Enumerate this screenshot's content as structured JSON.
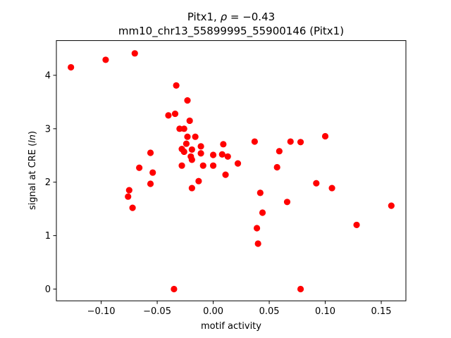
{
  "chart_data": {
    "type": "scatter",
    "title_main": "Pitx1, ",
    "title_rho_symbol": "ρ",
    "title_rho_value": " = −0.43",
    "subtitle": "mm10_chr13_55899995_55900146 (Pitx1)",
    "xlabel": "motif activity",
    "ylabel_prefix": "signal at CRE (",
    "ylabel_italic": "ln",
    "ylabel_suffix": ")",
    "xlim": [
      -0.14,
      0.172
    ],
    "ylim": [
      -0.22,
      4.65
    ],
    "xticks": [
      -0.1,
      -0.05,
      0.0,
      0.05,
      0.1,
      0.15
    ],
    "xtick_labels": [
      "−0.10",
      "−0.05",
      "0.00",
      "0.05",
      "0.10",
      "0.15"
    ],
    "yticks": [
      0,
      1,
      2,
      3,
      4
    ],
    "ytick_labels": [
      "0",
      "1",
      "2",
      "3",
      "4"
    ],
    "grid": false,
    "marker_color": "#ff0000",
    "points": [
      [
        -0.127,
        4.15
      ],
      [
        -0.096,
        4.29
      ],
      [
        -0.07,
        4.41
      ],
      [
        -0.033,
        3.81
      ],
      [
        -0.04,
        3.25
      ],
      [
        -0.034,
        3.28
      ],
      [
        -0.023,
        3.53
      ],
      [
        -0.021,
        3.15
      ],
      [
        -0.03,
        3.0
      ],
      [
        -0.026,
        3.0
      ],
      [
        -0.023,
        2.85
      ],
      [
        -0.016,
        2.85
      ],
      [
        -0.024,
        2.72
      ],
      [
        -0.028,
        2.62
      ],
      [
        -0.019,
        2.61
      ],
      [
        -0.026,
        2.57
      ],
      [
        -0.02,
        2.48
      ],
      [
        -0.019,
        2.42
      ],
      [
        -0.011,
        2.67
      ],
      [
        -0.011,
        2.54
      ],
      [
        -0.028,
        2.31
      ],
      [
        -0.009,
        2.31
      ],
      [
        0.0,
        2.51
      ],
      [
        0.0,
        2.31
      ],
      [
        -0.013,
        2.02
      ],
      [
        -0.019,
        1.89
      ],
      [
        -0.056,
        2.55
      ],
      [
        -0.066,
        2.27
      ],
      [
        -0.054,
        2.18
      ],
      [
        -0.056,
        1.97
      ],
      [
        -0.075,
        1.85
      ],
      [
        -0.076,
        1.73
      ],
      [
        -0.072,
        1.52
      ],
      [
        -0.035,
        0.0
      ],
      [
        0.009,
        2.71
      ],
      [
        0.008,
        2.52
      ],
      [
        0.013,
        2.48
      ],
      [
        0.011,
        2.14
      ],
      [
        0.022,
        2.35
      ],
      [
        0.037,
        2.76
      ],
      [
        0.059,
        2.58
      ],
      [
        0.057,
        2.28
      ],
      [
        0.042,
        1.8
      ],
      [
        0.044,
        1.43
      ],
      [
        0.039,
        1.14
      ],
      [
        0.04,
        0.85
      ],
      [
        0.069,
        2.76
      ],
      [
        0.078,
        2.75
      ],
      [
        0.066,
        1.63
      ],
      [
        0.078,
        0.0
      ],
      [
        0.1,
        2.86
      ],
      [
        0.092,
        1.98
      ],
      [
        0.106,
        1.89
      ],
      [
        0.128,
        1.2
      ],
      [
        0.159,
        1.56
      ]
    ]
  }
}
